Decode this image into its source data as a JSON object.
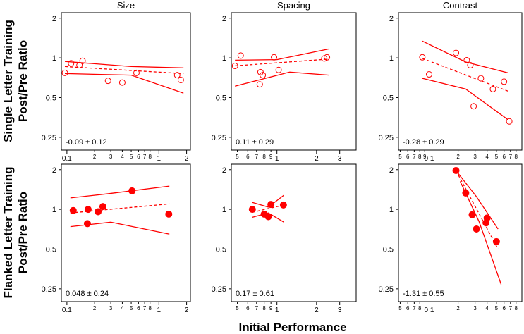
{
  "figure": {
    "row_labels": [
      [
        "Single Letter Training",
        "Post/Pre Ratio"
      ],
      [
        "Flanked Letter Training",
        "Post/Pre Ratio"
      ]
    ],
    "xlabel": "Initial Performance"
  },
  "chart_data": [
    {
      "type": "scatter",
      "title": "Size",
      "annotation": "-0.09 ± 0.12",
      "xscale": "log",
      "yscale": "log",
      "color": "#ff0000",
      "marker": "open",
      "xlim": [
        0.087,
        2.2
      ],
      "ylim": [
        0.2,
        2.2
      ],
      "xticks": [
        0.1,
        {
          "value": 0.2,
          "label": "2"
        },
        {
          "value": 0.3,
          "label": "3"
        },
        {
          "value": 0.4,
          "label": "4"
        },
        {
          "value": 0.5,
          "label": "5"
        },
        {
          "value": 0.6,
          "label": "6"
        },
        {
          "value": 0.7,
          "label": "7"
        },
        {
          "value": 0.8,
          "label": "8"
        },
        1,
        2
      ],
      "yticks": [
        0.25,
        0.5,
        1,
        2
      ],
      "points": {
        "x": [
          0.095,
          0.111,
          0.137,
          0.148,
          0.28,
          0.4,
          0.57,
          1.58,
          1.73
        ],
        "values": [
          0.77,
          0.91,
          0.88,
          0.95,
          0.67,
          0.65,
          0.77,
          0.74,
          0.68
        ]
      },
      "fit": {
        "x": [
          0.095,
          1.85
        ],
        "values": [
          0.86,
          0.76
        ]
      },
      "upper": {
        "x": [
          0.095,
          0.5,
          1.85
        ],
        "values": [
          0.94,
          0.86,
          0.84
        ]
      },
      "lower": {
        "x": [
          0.095,
          0.5,
          1.85
        ],
        "values": [
          0.76,
          0.74,
          0.54
        ]
      }
    },
    {
      "type": "scatter",
      "title": "Spacing",
      "annotation": "0.11 ± 0.29",
      "xscale": "log",
      "yscale": "log",
      "color": "#ff0000",
      "marker": "open",
      "xlim": [
        0.45,
        4
      ],
      "ylim": [
        0.2,
        2.2
      ],
      "xticks": [
        {
          "value": 0.5,
          "label": "5"
        },
        {
          "value": 0.6,
          "label": "6"
        },
        {
          "value": 0.7,
          "label": "7"
        },
        {
          "value": 0.8,
          "label": "8"
        },
        {
          "value": 0.9,
          "label": "9"
        },
        1,
        2,
        3
      ],
      "yticks": [
        0.25,
        0.5,
        1,
        2
      ],
      "points": {
        "x": [
          0.48,
          0.53,
          0.75,
          0.78,
          0.74,
          0.95,
          1.03,
          2.29,
          2.4
        ],
        "values": [
          0.87,
          1.04,
          0.78,
          0.74,
          0.63,
          1.01,
          0.81,
          0.99,
          1.01
        ]
      },
      "fit": {
        "x": [
          0.48,
          2.49
        ],
        "values": [
          0.87,
          0.98
        ]
      },
      "upper": {
        "x": [
          0.48,
          1.0,
          2.49
        ],
        "values": [
          0.96,
          0.97,
          1.17
        ]
      },
      "lower": {
        "x": [
          0.48,
          1.25,
          2.49
        ],
        "values": [
          0.61,
          0.78,
          0.74
        ]
      }
    },
    {
      "type": "scatter",
      "title": "Contrast",
      "annotation": "-0.28 ± 0.29",
      "xscale": "log",
      "yscale": "log",
      "color": "#ff0000",
      "marker": "open",
      "xlim": [
        0.048,
        0.92
      ],
      "ylim": [
        0.2,
        2.2
      ],
      "xticks": [
        {
          "value": 0.05,
          "label": "5"
        },
        {
          "value": 0.06,
          "label": "6"
        },
        {
          "value": 0.07,
          "label": "7"
        },
        {
          "value": 0.08,
          "label": "8"
        },
        {
          "value": 0.09,
          "label": "9"
        },
        0.1,
        {
          "value": 0.2,
          "label": "2"
        },
        {
          "value": 0.3,
          "label": "3"
        },
        {
          "value": 0.4,
          "label": "4"
        },
        {
          "value": 0.5,
          "label": "5"
        },
        {
          "value": 0.6,
          "label": "6"
        },
        {
          "value": 0.7,
          "label": "7"
        },
        {
          "value": 0.8,
          "label": "8"
        }
      ],
      "yticks": [
        0.25,
        0.5,
        1,
        2
      ],
      "points": {
        "x": [
          0.085,
          0.1,
          0.19,
          0.246,
          0.268,
          0.345,
          0.46,
          0.29,
          0.6,
          0.68
        ],
        "values": [
          1.01,
          0.75,
          1.09,
          0.96,
          0.88,
          0.7,
          0.58,
          0.43,
          0.66,
          0.33
        ]
      },
      "fit": {
        "x": [
          0.085,
          0.66
        ],
        "values": [
          0.99,
          0.56
        ]
      },
      "upper": {
        "x": [
          0.085,
          0.24,
          0.66
        ],
        "values": [
          1.34,
          0.93,
          0.77
        ]
      },
      "lower": {
        "x": [
          0.085,
          0.24,
          0.66
        ],
        "values": [
          0.7,
          0.58,
          0.34
        ]
      }
    },
    {
      "type": "scatter",
      "annotation": "0.048 ± 0.24",
      "xscale": "log",
      "yscale": "log",
      "color": "#ff0000",
      "marker": "filled",
      "xlim": [
        0.087,
        2.2
      ],
      "ylim": [
        0.2,
        2.2
      ],
      "xticks": [
        0.1,
        {
          "value": 0.2,
          "label": "2"
        },
        {
          "value": 0.3,
          "label": "3"
        },
        {
          "value": 0.4,
          "label": "4"
        },
        {
          "value": 0.5,
          "label": "5"
        },
        {
          "value": 0.6,
          "label": "6"
        },
        {
          "value": 0.7,
          "label": "7"
        },
        {
          "value": 0.8,
          "label": "8"
        },
        1,
        2
      ],
      "yticks": [
        0.25,
        0.5,
        1,
        2
      ],
      "points": {
        "x": [
          0.117,
          0.17,
          0.167,
          0.218,
          0.246,
          0.51,
          1.28
        ],
        "values": [
          0.98,
          1.0,
          0.78,
          0.96,
          1.05,
          1.38,
          0.92
        ]
      },
      "fit": {
        "x": [
          0.109,
          1.3
        ],
        "values": [
          0.94,
          1.1
        ]
      },
      "upper": {
        "x": [
          0.109,
          0.27,
          1.3
        ],
        "values": [
          1.22,
          1.31,
          1.5
        ]
      },
      "lower": {
        "x": [
          0.109,
          0.3,
          1.3
        ],
        "values": [
          0.74,
          0.8,
          0.65
        ]
      }
    },
    {
      "type": "scatter",
      "annotation": "0.17 ± 0.61",
      "xscale": "log",
      "yscale": "log",
      "color": "#ff0000",
      "marker": "filled",
      "xlim": [
        0.45,
        4
      ],
      "ylim": [
        0.2,
        2.2
      ],
      "xticks": [
        {
          "value": 0.5,
          "label": "5"
        },
        {
          "value": 0.6,
          "label": "6"
        },
        {
          "value": 0.7,
          "label": "7"
        },
        {
          "value": 0.8,
          "label": "8"
        },
        {
          "value": 0.9,
          "label": "9"
        },
        1,
        2,
        3
      ],
      "yticks": [
        0.25,
        0.5,
        1,
        2
      ],
      "points": {
        "x": [
          0.65,
          0.8,
          0.86,
          0.9,
          1.12
        ],
        "values": [
          1.0,
          0.92,
          0.88,
          1.09,
          1.08
        ]
      },
      "fit": {
        "x": [
          0.65,
          1.13
        ],
        "values": [
          0.95,
          1.08
        ]
      },
      "upper": {
        "x": [
          0.65,
          0.86,
          1.13
        ],
        "values": [
          1.13,
          1.04,
          1.28
        ]
      },
      "lower": {
        "x": [
          0.65,
          0.86,
          1.13
        ],
        "values": [
          0.87,
          0.94,
          0.8
        ]
      }
    },
    {
      "type": "scatter",
      "annotation": "-1.31 ± 0.55",
      "xscale": "log",
      "yscale": "log",
      "color": "#ff0000",
      "marker": "filled",
      "xlim": [
        0.048,
        0.92
      ],
      "ylim": [
        0.2,
        2.2
      ],
      "xticks": [
        {
          "value": 0.05,
          "label": "5"
        },
        {
          "value": 0.06,
          "label": "6"
        },
        {
          "value": 0.07,
          "label": "7"
        },
        {
          "value": 0.08,
          "label": "8"
        },
        0.1,
        {
          "value": 0.2,
          "label": "2"
        },
        {
          "value": 0.3,
          "label": "3"
        },
        {
          "value": 0.4,
          "label": "4"
        },
        {
          "value": 0.5,
          "label": "5"
        },
        {
          "value": 0.6,
          "label": "6"
        },
        {
          "value": 0.7,
          "label": "7"
        },
        {
          "value": 0.8,
          "label": "8"
        }
      ],
      "yticks": [
        0.25,
        0.5,
        1,
        2
      ],
      "points": {
        "x": [
          0.19,
          0.24,
          0.28,
          0.31,
          0.4,
          0.39,
          0.5
        ],
        "values": [
          1.97,
          1.33,
          0.91,
          0.71,
          0.86,
          0.79,
          0.57
        ]
      },
      "fit": {
        "x": [
          0.19,
          0.52
        ],
        "values": [
          1.97,
          0.5
        ]
      },
      "upper": {
        "x": [
          0.19,
          0.31,
          0.52
        ],
        "values": [
          1.97,
          1.25,
          0.71
        ]
      },
      "lower": {
        "x": [
          0.21,
          0.33,
          0.56
        ],
        "values": [
          1.63,
          0.81,
          0.27
        ]
      }
    }
  ]
}
